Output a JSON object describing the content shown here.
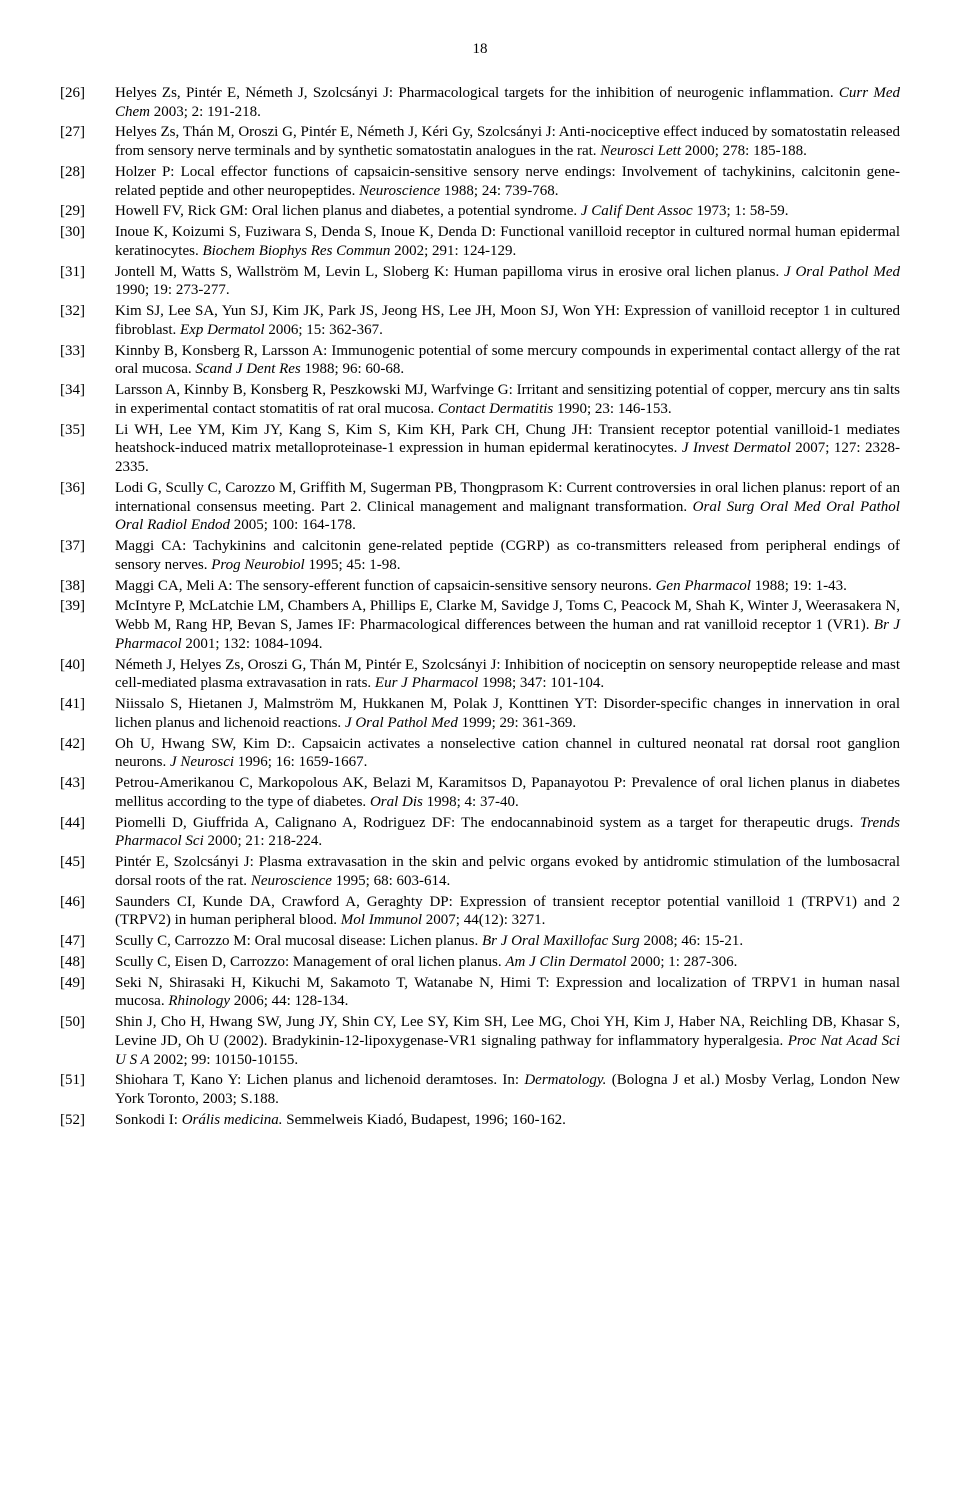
{
  "page_number": "18",
  "references": [
    {
      "num": "[26]",
      "prefix": "Helyes Zs, Pintér E, Németh J, Szolcsányi J: Pharmacological targets for the inhibition of neurogenic inflammation. ",
      "journal": "Curr Med Chem",
      "suffix": " 2003; 2: 191-218."
    },
    {
      "num": "[27]",
      "prefix": "Helyes Zs, Thán M, Oroszi G, Pintér E, Németh J, Kéri Gy, Szolcsányi J: Anti-nociceptive effect induced by somatostatin released from sensory nerve terminals and by synthetic somatostatin analogues in the rat. ",
      "journal": "Neurosci Lett",
      "suffix": " 2000; 278: 185-188."
    },
    {
      "num": "[28]",
      "prefix": "Holzer P: Local effector functions of capsaicin-sensitive sensory nerve endings: Involvement of tachykinins, calcitonin gene-related peptide and other neuropeptides. ",
      "journal": "Neuroscience",
      "suffix": " 1988; 24: 739-768."
    },
    {
      "num": "[29]",
      "prefix": "Howell FV, Rick GM: Oral lichen planus and diabetes, a potential syndrome. ",
      "journal": "J Calif Dent Assoc",
      "suffix": " 1973; 1: 58-59."
    },
    {
      "num": "[30]",
      "prefix": "Inoue K, Koizumi S, Fuziwara S, Denda S, Inoue K, Denda D: Functional vanilloid receptor in cultured normal human epidermal keratinocytes. ",
      "journal": "Biochem Biophys Res Commun",
      "suffix": " 2002; 291: 124-129."
    },
    {
      "num": "[31]",
      "prefix": "Jontell M, Watts S, Wallström M, Levin L, Sloberg K: Human papilloma virus in erosive oral lichen planus. ",
      "journal": "J Oral Pathol Med",
      "suffix": " 1990; 19: 273-277."
    },
    {
      "num": "[32]",
      "prefix": "Kim SJ, Lee SA, Yun SJ, Kim JK, Park JS, Jeong HS, Lee JH, Moon SJ, Won YH: Expression of vanilloid receptor 1 in cultured fibroblast. ",
      "journal": "Exp Dermatol",
      "suffix": " 2006; 15: 362-367."
    },
    {
      "num": "[33]",
      "prefix": "Kinnby B, Konsberg R, Larsson A: Immunogenic potential of some mercury compounds in experimental contact allergy of the rat oral mucosa. ",
      "journal": "Scand J Dent Res",
      "suffix": " 1988; 96: 60-68."
    },
    {
      "num": "[34]",
      "prefix": "Larsson A, Kinnby B, Konsberg R, Peszkowski MJ, Warfvinge G: Irritant and sensitizing potential of copper, mercury ans tin salts in experimental contact stomatitis of rat oral mucosa. ",
      "journal": "Contact Dermatitis",
      "suffix": " 1990; 23: 146-153."
    },
    {
      "num": "[35]",
      "prefix": "Li WH, Lee YM, Kim JY, Kang S, Kim S, Kim KH, Park CH, Chung JH: Transient receptor potential vanilloid-1 mediates heatshock-induced matrix metalloproteinase-1 expression in human epidermal keratinocytes. ",
      "journal": "J Invest Dermatol",
      "suffix": " 2007; 127: 2328-2335."
    },
    {
      "num": "[36]",
      "prefix": "Lodi G, Scully C, Carozzo M, Griffith M, Sugerman PB, Thongprasom K: Current controversies in oral lichen planus: report of an international consensus meeting. Part 2. Clinical management and malignant transformation. ",
      "journal": "Oral Surg Oral Med Oral Pathol Oral Radiol Endod",
      "suffix": " 2005; 100: 164-178."
    },
    {
      "num": "[37]",
      "prefix": "Maggi CA: Tachykinins and calcitonin gene-related peptide (CGRP) as co-transmitters released from peripheral endings of sensory nerves. ",
      "journal": "Prog Neurobiol",
      "suffix": " 1995; 45: 1-98."
    },
    {
      "num": "[38]",
      "prefix": "Maggi CA, Meli A: The sensory-efferent function of capsaicin-sensitive sensory neurons. ",
      "journal": "Gen Pharmacol",
      "suffix": " 1988; 19: 1-43."
    },
    {
      "num": "[39]",
      "prefix": "McIntyre P, McLatchie LM, Chambers A, Phillips E, Clarke M, Savidge J, Toms C, Peacock M, Shah K, Winter J, Weerasakera N, Webb M, Rang HP, Bevan S, James IF: Pharmacological differences between the human and rat vanilloid receptor 1 (VR1). ",
      "journal": "Br J Pharmacol",
      "suffix": " 2001; 132: 1084-1094."
    },
    {
      "num": "[40]",
      "prefix": "Németh J, Helyes Zs, Oroszi G, Thán M, Pintér E, Szolcsányi J: Inhibition of nociceptin on sensory neuropeptide release and mast cell-mediated plasma extravasation in rats. ",
      "journal": "Eur J Pharmacol",
      "suffix": " 1998; 347: 101-104."
    },
    {
      "num": "[41]",
      "prefix": "Niissalo S, Hietanen J, Malmström M, Hukkanen M, Polak J, Konttinen YT: Disorder-specific changes in innervation in oral lichen planus and lichenoid reactions. ",
      "journal": "J Oral Pathol Med",
      "suffix": " 1999; 29: 361-369."
    },
    {
      "num": "[42]",
      "prefix": "Oh U, Hwang SW, Kim D:. Capsaicin activates a nonselective cation channel in cultured neonatal rat dorsal root ganglion neurons. ",
      "journal": "J Neurosci",
      "suffix": " 1996; 16: 1659-1667."
    },
    {
      "num": "[43]",
      "prefix": "Petrou-Amerikanou C, Markopolous AK, Belazi M, Karamitsos D, Papanayotou P: Prevalence of oral lichen planus in diabetes mellitus according to the type of diabetes. ",
      "journal": "Oral Dis",
      "suffix": " 1998; 4: 37-40."
    },
    {
      "num": "[44]",
      "prefix": "Piomelli D, Giuffrida A, Calignano A, Rodriguez DF: The endocannabinoid system as a target for therapeutic drugs. ",
      "journal": "Trends Pharmacol Sci",
      "suffix": " 2000; 21: 218-224."
    },
    {
      "num": "[45]",
      "prefix": "Pintér E, Szolcsányi J: Plasma extravasation in the skin and pelvic organs evoked by antidromic stimulation of the lumbosacral dorsal roots of the rat. ",
      "journal": "Neuroscience",
      "suffix": " 1995; 68: 603-614."
    },
    {
      "num": "[46]",
      "prefix": "Saunders CI, Kunde DA, Crawford A, Geraghty DP: Expression of transient receptor potential vanilloid 1 (TRPV1) and 2 (TRPV2) in human peripheral blood. ",
      "journal": "Mol Immunol",
      "suffix": " 2007; 44(12): 3271."
    },
    {
      "num": "[47]",
      "prefix": "Scully C, Carrozzo M: Oral mucosal disease: Lichen planus. ",
      "journal": "Br J Oral Maxillofac Surg",
      "suffix": " 2008; 46: 15-21."
    },
    {
      "num": "[48]",
      "prefix": "Scully C, Eisen D, Carrozzo: Management of oral lichen planus. ",
      "journal": "Am J Clin Dermatol",
      "suffix": " 2000; 1: 287-306."
    },
    {
      "num": "[49]",
      "prefix": "Seki N, Shirasaki H, Kikuchi M, Sakamoto T, Watanabe N, Himi T: Expression and localization of TRPV1 in human nasal mucosa. ",
      "journal": "Rhinology",
      "suffix": " 2006; 44: 128-134."
    },
    {
      "num": "[50]",
      "prefix": "Shin J, Cho H, Hwang SW, Jung JY, Shin CY, Lee SY, Kim SH, Lee MG, Choi YH, Kim J, Haber NA, Reichling DB, Khasar S, Levine JD, Oh U (2002). Bradykinin-12-lipoxygenase-VR1 signaling pathway for inflammatory hyperalgesia. ",
      "journal": "Proc Nat Acad Sci U S A",
      "suffix": " 2002; 99: 10150-10155."
    },
    {
      "num": "[51]",
      "prefix": "Shiohara T, Kano Y: Lichen planus and lichenoid deramtoses. In: ",
      "journal": "Dermatology.",
      "suffix": " (Bologna J et al.) Mosby Verlag, London New York Toronto, 2003; S.188."
    },
    {
      "num": "[52]",
      "prefix": "Sonkodi I: ",
      "journal": "Orális medicina.",
      "suffix": " Semmelweis Kiadó, Budapest, 1996; 160-162."
    }
  ]
}
